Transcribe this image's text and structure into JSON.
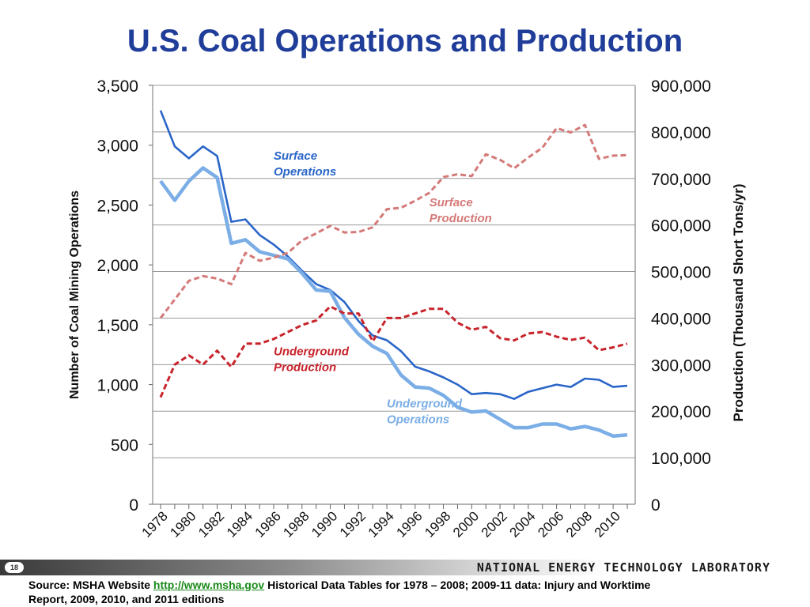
{
  "title": "U.S. Coal Operations and Production",
  "footer": {
    "page_number": "18",
    "organization": "NATIONAL ENERGY TECHNOLOGY LABORATORY",
    "source_prefix": "Source: MSHA Website ",
    "source_link": "http://www.msha.gov",
    "source_suffix": " Historical Data Tables for 1978 – 2008;  2009-11 data: Injury and Worktime",
    "source_line2": "Report, 2009, 2010, and 2011 editions"
  },
  "colors": {
    "surface_operations": "#2a65c8",
    "underground_operations": "#7baee6",
    "surface_production": "#d47a78",
    "underground_production": "#c8232a",
    "title": "#1f3d99",
    "grid": "#9a9a9a"
  },
  "chart_data": {
    "type": "line",
    "x": [
      1978,
      1979,
      1980,
      1981,
      1982,
      1983,
      1984,
      1985,
      1986,
      1987,
      1988,
      1989,
      1990,
      1991,
      1992,
      1993,
      1994,
      1995,
      1996,
      1997,
      1998,
      1999,
      2000,
      2001,
      2002,
      2003,
      2004,
      2005,
      2006,
      2007,
      2008,
      2009,
      2010,
      2011
    ],
    "x_tick_labels": [
      "1978",
      "1980",
      "1982",
      "1984",
      "1986",
      "1988",
      "1990",
      "1992",
      "1994",
      "1996",
      "1998",
      "2000",
      "2002",
      "2004",
      "2006",
      "2008",
      "2010"
    ],
    "ylabel": "Number of Coal Mining Operations",
    "y2label": "Production (Thousand Short Tons/yr)",
    "ylim": [
      0,
      3500
    ],
    "y_ticks": [
      "0",
      "500",
      "1,000",
      "1,500",
      "2,000",
      "2,500",
      "3,000",
      "3,500"
    ],
    "y2lim": [
      0,
      900000
    ],
    "y2_ticks": [
      "0",
      "100,000",
      "200,000",
      "300,000",
      "400,000",
      "500,000",
      "600,000",
      "700,000",
      "800,000",
      "900,000"
    ],
    "grid": true,
    "series": [
      {
        "name": "Surface Operations",
        "axis": "left",
        "style": "solid",
        "values": [
          3290,
          2990,
          2890,
          2990,
          2910,
          2360,
          2380,
          2250,
          2170,
          2070,
          1950,
          1840,
          1790,
          1690,
          1530,
          1410,
          1370,
          1280,
          1150,
          1110,
          1060,
          1000,
          920,
          930,
          920,
          880,
          940,
          970,
          1000,
          980,
          1050,
          1040,
          980,
          990
        ]
      },
      {
        "name": "Underground Operations",
        "axis": "left",
        "style": "solid",
        "values": [
          2700,
          2540,
          2700,
          2810,
          2730,
          2180,
          2210,
          2110,
          2080,
          2050,
          1930,
          1790,
          1780,
          1560,
          1420,
          1320,
          1260,
          1080,
          980,
          970,
          910,
          810,
          770,
          780,
          710,
          640,
          640,
          670,
          670,
          630,
          650,
          620,
          570,
          580
        ]
      },
      {
        "name": "Surface Production",
        "axis": "right",
        "style": "dashed",
        "values": [
          400000,
          440000,
          480000,
          490000,
          485000,
          473000,
          540000,
          523000,
          530000,
          540000,
          567000,
          582000,
          598000,
          584000,
          585000,
          595000,
          634000,
          637000,
          652000,
          669000,
          703000,
          709000,
          705000,
          752000,
          740000,
          722000,
          745000,
          766000,
          808000,
          799000,
          815000,
          742000,
          749000,
          750000
        ]
      },
      {
        "name": "Underground Production",
        "axis": "right",
        "style": "dashed",
        "values": [
          230000,
          300000,
          320000,
          300000,
          330000,
          295000,
          345000,
          345000,
          355000,
          370000,
          385000,
          395000,
          425000,
          410000,
          410000,
          350000,
          400000,
          400000,
          410000,
          420000,
          420000,
          390000,
          375000,
          381000,
          357000,
          352000,
          367000,
          370000,
          360000,
          353000,
          358000,
          331000,
          337000,
          345000
        ]
      }
    ],
    "annotations": [
      {
        "series": "Surface Operations",
        "line1": "Surface",
        "line2": "Operations",
        "anchor_year": 1986,
        "anchor_value": 2880,
        "axis": "left"
      },
      {
        "series": "Underground Production",
        "line1": "Underground",
        "line2": "Production",
        "anchor_year": 1986,
        "anchor_value": 320000,
        "axis": "right"
      },
      {
        "series": "Surface Production",
        "line1": "Surface",
        "line2": "Production",
        "anchor_year": 1997,
        "anchor_value": 640000,
        "axis": "right"
      },
      {
        "series": "Underground Operations",
        "line1": "Underground",
        "line2": "Operations",
        "anchor_year": 1994,
        "anchor_value": 810,
        "axis": "left"
      }
    ]
  }
}
